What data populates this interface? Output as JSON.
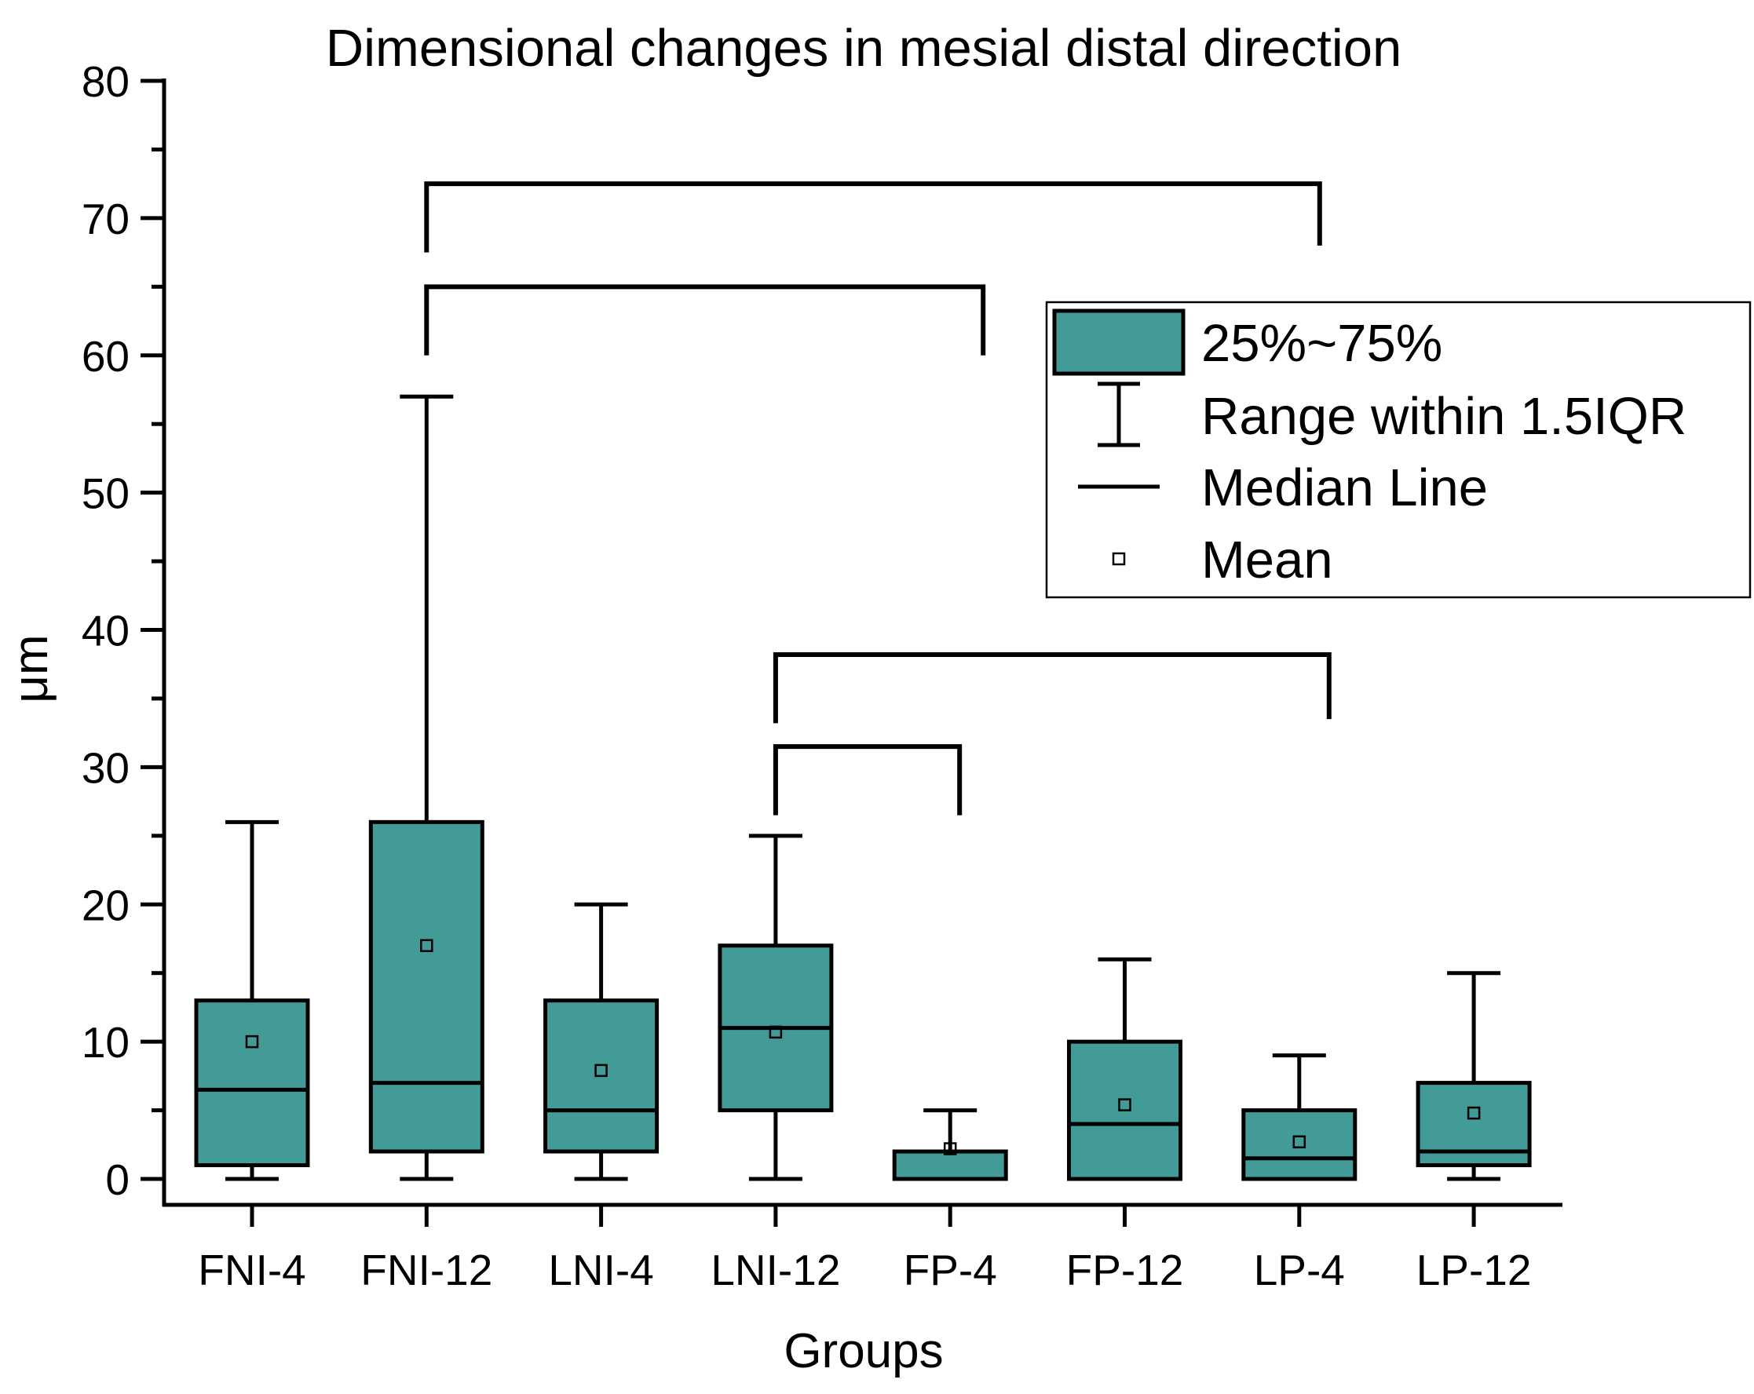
{
  "chart_data": {
    "type": "box",
    "title": "Dimensional changes in mesial distal direction",
    "xlabel": "Groups",
    "ylabel": "μm",
    "ylim": [
      0,
      80
    ],
    "yticks": [
      0,
      10,
      20,
      30,
      40,
      50,
      60,
      70,
      80
    ],
    "ytick_labels": [
      "0",
      "10",
      "20",
      "30",
      "40",
      "50",
      "60",
      "70",
      "80"
    ],
    "categories": [
      "FNI-4",
      "FNI-12",
      "LNI-4",
      "LNI-12",
      "FP-4",
      "FP-12",
      "LP-4",
      "LP-12"
    ],
    "series": [
      {
        "name": "FNI-4",
        "whisker_low": 0,
        "q1": 1,
        "median": 6.5,
        "q3": 13,
        "whisker_high": 26,
        "mean": 10
      },
      {
        "name": "FNI-12",
        "whisker_low": 0,
        "q1": 2,
        "median": 7,
        "q3": 26,
        "whisker_high": 57,
        "mean": 17
      },
      {
        "name": "LNI-4",
        "whisker_low": 0,
        "q1": 2,
        "median": 5,
        "q3": 13,
        "whisker_high": 20,
        "mean": 7.9
      },
      {
        "name": "LNI-12",
        "whisker_low": 0,
        "q1": 5,
        "median": 11,
        "q3": 17,
        "whisker_high": 25,
        "mean": 10.7
      },
      {
        "name": "FP-4",
        "whisker_low": 0,
        "q1": 0,
        "median": 0,
        "q3": 2,
        "whisker_high": 5,
        "mean": 2.2
      },
      {
        "name": "FP-12",
        "whisker_low": 0,
        "q1": 0,
        "median": 4,
        "q3": 10,
        "whisker_high": 16,
        "mean": 5.4
      },
      {
        "name": "LP-4",
        "whisker_low": 0,
        "q1": 0,
        "median": 1.5,
        "q3": 5,
        "whisker_high": 9,
        "mean": 2.7
      },
      {
        "name": "LP-12",
        "whisker_low": 0,
        "q1": 1,
        "median": 2,
        "q3": 7,
        "whisker_high": 15,
        "mean": 4.8
      }
    ],
    "significance_brackets": [
      {
        "from": "FNI-12",
        "to": "LP-4",
        "level": 72.5,
        "left_drop": 67.5,
        "right_drop": 68
      },
      {
        "from": "FNI-12",
        "to": "FP-4",
        "level": 65,
        "left_drop": 60,
        "right_drop": 60
      },
      {
        "from": "LNI-12",
        "to": "LP-4",
        "level": 38.2,
        "left_drop": 33.2,
        "right_drop": 33.5
      },
      {
        "from": "LNI-12",
        "to": "FP-4",
        "level": 31.5,
        "left_drop": 26.5,
        "right_drop": 26.5
      }
    ],
    "legend": {
      "position": "top-right",
      "entries": [
        {
          "label": "25%~75%",
          "symbol": "box"
        },
        {
          "label": "Range within 1.5IQR",
          "symbol": "whisker"
        },
        {
          "label": "Median Line",
          "symbol": "line"
        },
        {
          "label": "Mean",
          "symbol": "square"
        }
      ]
    },
    "colors": {
      "box_fill": "#439b98",
      "stroke": "#000000",
      "background": "#ffffff"
    }
  }
}
